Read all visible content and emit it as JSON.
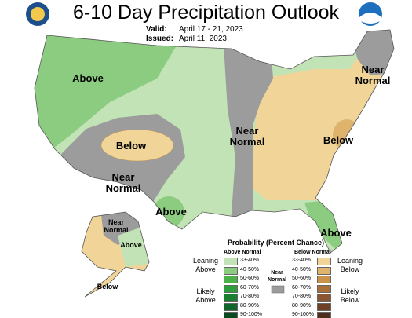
{
  "header": {
    "title": "6-10 Day Precipitation Outlook",
    "valid_label": "Valid:",
    "valid": "April 17 - 21, 2023",
    "issued_label": "Issued:",
    "issued": "April 11, 2023"
  },
  "map_labels": [
    "Above",
    "Below",
    "Near Normal",
    "Near Normal",
    "Above",
    "Near Normal",
    "Below",
    "Above",
    "Near Normal",
    "Above",
    "Below"
  ],
  "legend": {
    "title": "Probability (Percent Chance)",
    "above_header": "Above Normal",
    "below_header": "Below Normal",
    "near_normal": "Near Normal",
    "above_rows": [
      "33-40%",
      "40-50%",
      "50-60%",
      "60-70%",
      "70-80%",
      "80-90%",
      "90-100%"
    ],
    "below_rows": [
      "33-40%",
      "40-50%",
      "50-60%",
      "60-70%",
      "70-80%",
      "80-90%",
      "90-100%"
    ],
    "leaning_above": "Leaning Above",
    "likely_above": "Likely Above",
    "leaning_below": "Leaning Below",
    "likely_below": "Likely Below"
  }
}
